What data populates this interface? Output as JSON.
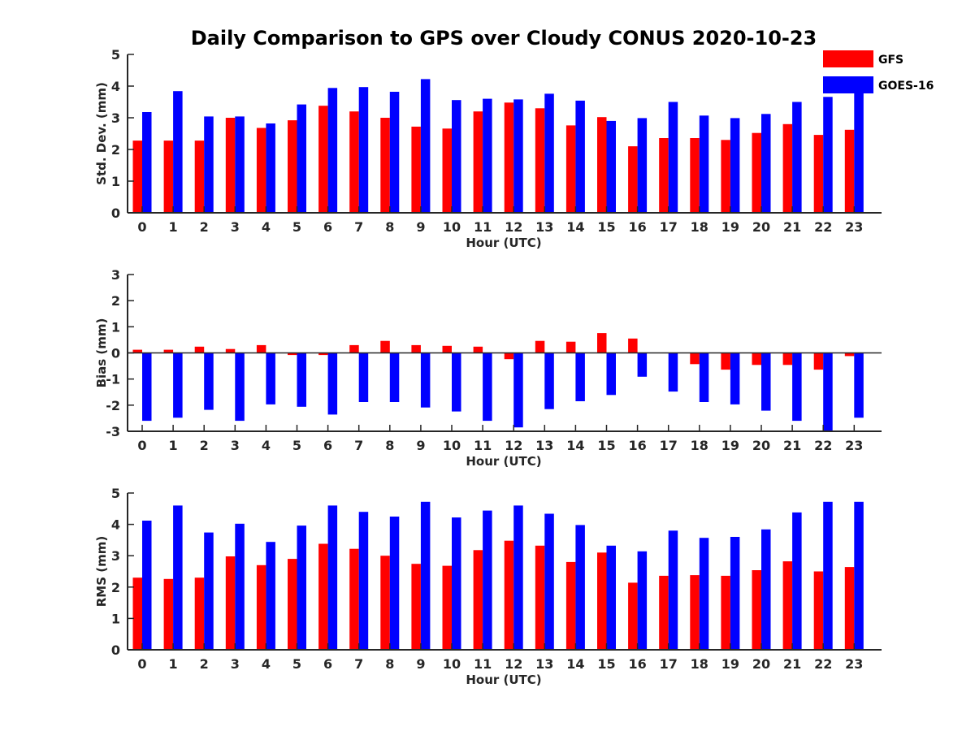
{
  "title": "Daily Comparison to GPS over Cloudy CONUS 2020-10-23",
  "legend": [
    {
      "name": "GFS",
      "color": "#ff0000"
    },
    {
      "name": "GOES-16",
      "color": "#0000ff"
    }
  ],
  "chart_data": [
    {
      "type": "bar",
      "ylabel": "Std. Dev. (mm)",
      "xlabel": "Hour (UTC)",
      "ylim": [
        0,
        5
      ],
      "yticks": [
        "0",
        "1",
        "2",
        "3",
        "4",
        "5"
      ],
      "categories": [
        "0",
        "1",
        "2",
        "3",
        "4",
        "5",
        "6",
        "7",
        "8",
        "9",
        "10",
        "11",
        "12",
        "13",
        "14",
        "15",
        "16",
        "17",
        "18",
        "19",
        "20",
        "21",
        "22",
        "23"
      ],
      "series": [
        {
          "name": "GFS",
          "values": [
            2.28,
            2.28,
            2.28,
            3.0,
            2.68,
            2.92,
            3.38,
            3.2,
            3.0,
            2.72,
            2.66,
            3.2,
            3.48,
            3.3,
            2.76,
            3.02,
            2.1,
            2.36,
            2.36,
            2.3,
            2.52,
            2.8,
            2.46,
            2.62
          ]
        },
        {
          "name": "GOES-16",
          "values": [
            3.18,
            3.84,
            3.04,
            3.04,
            2.82,
            3.42,
            3.94,
            3.97,
            3.82,
            4.22,
            3.56,
            3.6,
            3.58,
            3.76,
            3.54,
            2.9,
            2.99,
            3.5,
            3.07,
            2.99,
            3.12,
            3.5,
            3.66,
            3.84
          ]
        }
      ]
    },
    {
      "type": "bar",
      "ylabel": "Bias (mm)",
      "xlabel": "Hour (UTC)",
      "ylim": [
        -3,
        3
      ],
      "yticks": [
        "-3",
        "-2",
        "-1",
        "0",
        "1",
        "2",
        "3"
      ],
      "categories": [
        "0",
        "1",
        "2",
        "3",
        "4",
        "5",
        "6",
        "7",
        "8",
        "9",
        "10",
        "11",
        "12",
        "13",
        "14",
        "15",
        "16",
        "17",
        "18",
        "19",
        "20",
        "21",
        "22",
        "23"
      ],
      "series": [
        {
          "name": "GFS",
          "values": [
            0.12,
            0.12,
            0.24,
            0.15,
            0.3,
            -0.08,
            -0.08,
            0.3,
            0.46,
            0.3,
            0.27,
            0.24,
            -0.24,
            0.46,
            0.43,
            0.76,
            0.55,
            0.0,
            -0.43,
            -0.64,
            -0.46,
            -0.46,
            -0.64,
            -0.12
          ]
        },
        {
          "name": "GOES-16",
          "values": [
            -2.6,
            -2.48,
            -2.18,
            -2.6,
            -1.97,
            -2.06,
            -2.36,
            -1.88,
            -1.88,
            -2.09,
            -2.24,
            -2.6,
            -2.85,
            -2.15,
            -1.85,
            -1.61,
            -0.91,
            -1.48,
            -1.88,
            -1.97,
            -2.21,
            -2.6,
            -3.0,
            -2.48
          ]
        }
      ]
    },
    {
      "type": "bar",
      "ylabel": "RMS (mm)",
      "xlabel": "Hour (UTC)",
      "ylim": [
        0,
        5
      ],
      "yticks": [
        "0",
        "1",
        "2",
        "3",
        "4",
        "5"
      ],
      "categories": [
        "0",
        "1",
        "2",
        "3",
        "4",
        "5",
        "6",
        "7",
        "8",
        "9",
        "10",
        "11",
        "12",
        "13",
        "14",
        "15",
        "16",
        "17",
        "18",
        "19",
        "20",
        "21",
        "22",
        "23"
      ],
      "series": [
        {
          "name": "GFS",
          "values": [
            2.3,
            2.26,
            2.3,
            2.98,
            2.7,
            2.9,
            3.38,
            3.22,
            3.0,
            2.74,
            2.68,
            3.18,
            3.48,
            3.32,
            2.8,
            3.1,
            2.14,
            2.36,
            2.38,
            2.36,
            2.54,
            2.82,
            2.5,
            2.64
          ]
        },
        {
          "name": "GOES-16",
          "values": [
            4.12,
            4.6,
            3.74,
            4.02,
            3.44,
            3.96,
            4.6,
            4.4,
            4.25,
            4.72,
            4.22,
            4.44,
            4.6,
            4.34,
            3.98,
            3.32,
            3.14,
            3.8,
            3.57,
            3.6,
            3.84,
            4.38,
            4.72,
            4.72
          ]
        }
      ]
    }
  ]
}
